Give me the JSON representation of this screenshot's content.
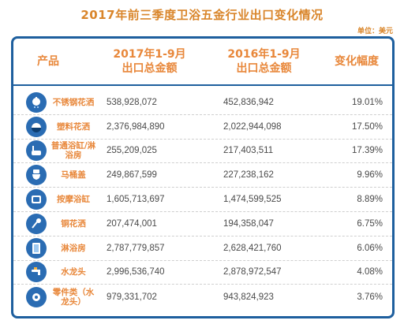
{
  "title": "2017年前三季度卫浴五金行业出口变化情况",
  "unit": "单位：美元",
  "headers": {
    "product": "产品",
    "y2017_line1": "2017年1-9月",
    "y2017_line2": "出口总金额",
    "y2016_line1": "2016年1-9月",
    "y2016_line2": "出口总金额",
    "change": "变化幅度"
  },
  "colors": {
    "accent": "#e8873a",
    "frame": "#1e5f9e",
    "icon_bg": "#2a6cb3"
  },
  "rows": [
    {
      "icon": "shower-head-icon",
      "product": "不锈钢花洒",
      "v2017": "538,928,072",
      "v2016": "452,836,942",
      "change": "19.01%"
    },
    {
      "icon": "round-shower-icon",
      "product": "塑料花洒",
      "v2017": "2,376,984,890",
      "v2016": "2,022,944,098",
      "change": "17.50%"
    },
    {
      "icon": "bathtub-icon",
      "product": "普通浴缸/淋浴房",
      "v2017": "255,209,025",
      "v2016": "217,403,511",
      "change": "17.39%"
    },
    {
      "icon": "toilet-icon",
      "product": "马桶盖",
      "v2017": "249,867,599",
      "v2016": "227,238,162",
      "change": "9.96%"
    },
    {
      "icon": "massage-tub-icon",
      "product": "按摩浴缸",
      "v2017": "1,605,713,697",
      "v2016": "1,474,599,525",
      "change": "8.89%"
    },
    {
      "icon": "copper-shower-icon",
      "product": "铜花洒",
      "v2017": "207,474,001",
      "v2016": "194,358,047",
      "change": "6.75%"
    },
    {
      "icon": "shower-room-icon",
      "product": "淋浴房",
      "v2017": "2,787,779,857",
      "v2016": "2,628,421,760",
      "change": "6.06%"
    },
    {
      "icon": "faucet-icon",
      "product": "水龙头",
      "v2017": "2,996,536,740",
      "v2016": "2,878,972,547",
      "change": "4.08%"
    },
    {
      "icon": "parts-icon",
      "product": "零件类（水龙头）",
      "v2017": "979,331,702",
      "v2016": "943,824,923",
      "change": "3.76%"
    }
  ]
}
